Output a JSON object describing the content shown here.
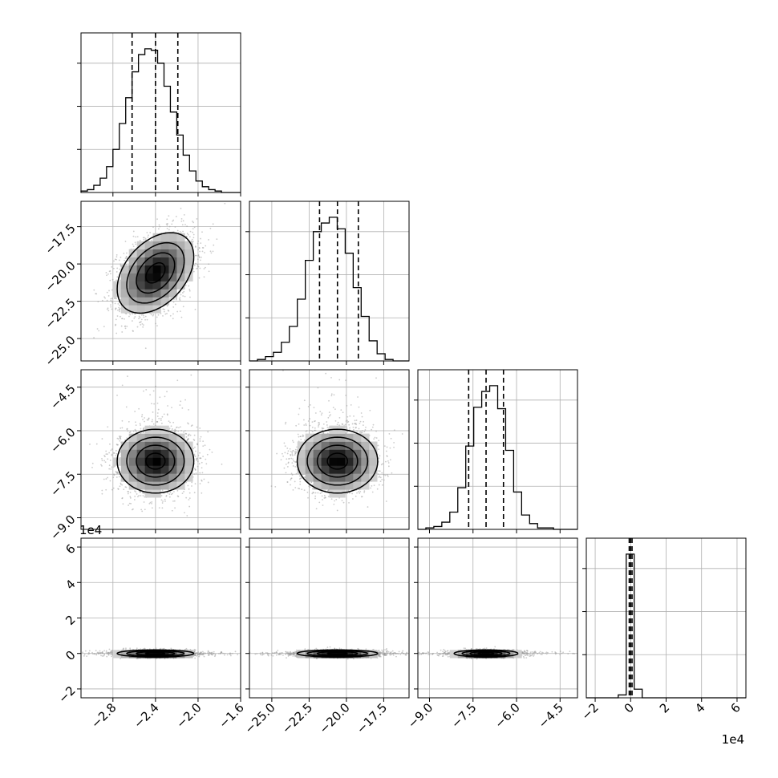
{
  "chart_data": {
    "type": "corner",
    "parameter_count": 4,
    "quantile_lines": "dashed lines at 16%, 50%, 84%",
    "grid": true,
    "colors": {
      "line": "#000000",
      "scatter": "#9a9a9a",
      "grid": "#b0b0b0",
      "frame": "#000000"
    },
    "axes": [
      {
        "range": [
          -3.1,
          -1.6
        ],
        "ticks": [
          -2.8,
          -2.4,
          -2.0,
          -1.6
        ],
        "tick_labels": [
          "−2.8",
          "−2.4",
          "−2.0",
          "−1.6"
        ],
        "offset_text": ""
      },
      {
        "range": [
          -26.5,
          -15.8
        ],
        "ticks": [
          -25.0,
          -22.5,
          -20.0,
          -17.5
        ],
        "tick_labels": [
          "−25.0",
          "−22.5",
          "−20.0",
          "−17.5"
        ],
        "offset_text": ""
      },
      {
        "range": [
          -9.4,
          -3.9
        ],
        "ticks": [
          -9.0,
          -7.5,
          -6.0,
          -4.5
        ],
        "tick_labels": [
          "−9.0",
          "−7.5",
          "−6.0",
          "−4.5"
        ],
        "offset_text": ""
      },
      {
        "range": [
          -2.5,
          6.5
        ],
        "ticks": [
          -2,
          0,
          2,
          4,
          6
        ],
        "tick_labels": [
          "−2",
          "0",
          "2",
          "4",
          "6"
        ],
        "offset_text": "1e4"
      }
    ],
    "marginals": [
      {
        "param": 0,
        "bin_edges": [
          -3.1,
          -3.04,
          -2.98,
          -2.92,
          -2.86,
          -2.8,
          -2.74,
          -2.68,
          -2.62,
          -2.56,
          -2.5,
          -2.44,
          -2.38,
          -2.32,
          -2.26,
          -2.2,
          -2.14,
          -2.08,
          -2.02,
          -1.96,
          -1.9,
          -1.84,
          -1.78,
          -1.72,
          -1.66,
          -1.6
        ],
        "counts": [
          0.01,
          0.02,
          0.05,
          0.1,
          0.18,
          0.3,
          0.48,
          0.66,
          0.84,
          0.96,
          1.0,
          0.99,
          0.9,
          0.74,
          0.56,
          0.4,
          0.26,
          0.15,
          0.08,
          0.04,
          0.02,
          0.01,
          0.0,
          0.0,
          0.0
        ],
        "quantiles": [
          -2.62,
          -2.4,
          -2.19
        ]
      },
      {
        "param": 1,
        "bin_edges": [
          -26.5,
          -25.965,
          -25.43,
          -24.895,
          -24.36,
          -23.825,
          -23.29,
          -22.755,
          -22.22,
          -21.685,
          -21.15,
          -20.615,
          -20.08,
          -19.545,
          -19.01,
          -18.475,
          -17.94,
          -17.405,
          -16.87,
          -16.335,
          -15.8
        ],
        "counts": [
          0.0,
          0.01,
          0.03,
          0.06,
          0.13,
          0.24,
          0.43,
          0.7,
          0.9,
          0.96,
          1.0,
          0.92,
          0.75,
          0.51,
          0.31,
          0.14,
          0.05,
          0.01,
          0.0,
          0.0
        ],
        "quantiles": [
          -21.8,
          -20.6,
          -19.2
        ]
      },
      {
        "param": 2,
        "bin_edges": [
          -9.4,
          -9.125,
          -8.85,
          -8.575,
          -8.3,
          -8.025,
          -7.75,
          -7.475,
          -7.2,
          -6.925,
          -6.65,
          -6.375,
          -6.1,
          -5.825,
          -5.55,
          -5.275,
          -5.0,
          -4.725,
          -4.45,
          -4.175,
          -3.9
        ],
        "counts": [
          0.0,
          0.01,
          0.02,
          0.05,
          0.12,
          0.29,
          0.58,
          0.85,
          0.96,
          1.0,
          0.84,
          0.55,
          0.26,
          0.1,
          0.04,
          0.01,
          0.01,
          0.0,
          0.0,
          0.0
        ],
        "quantiles": [
          -7.65,
          -7.05,
          -6.45
        ]
      },
      {
        "param": 3,
        "bin_edges": [
          -2.5,
          -2.05,
          -1.6,
          -1.15,
          -0.7,
          -0.25,
          0.2,
          0.65,
          1.1,
          1.55,
          2.0,
          2.45,
          2.9,
          3.35,
          3.8,
          4.25,
          4.7,
          5.15,
          5.6,
          6.05,
          6.5
        ],
        "counts": [
          0.0,
          0.0,
          0.0,
          0.0,
          0.02,
          1.0,
          0.06,
          0.0,
          0.0,
          0.0,
          0.0,
          0.0,
          0.0,
          0.0,
          0.0,
          0.0,
          0.0,
          0.0,
          0.0,
          0.0
        ],
        "quantiles": [
          -0.08,
          0.0,
          0.08
        ]
      }
    ],
    "joints": [
      {
        "x_param": 0,
        "y_param": 1,
        "mean": [
          -2.4,
          -20.6
        ],
        "std": [
          0.18,
          1.35
        ],
        "corr": 0.4
      },
      {
        "x_param": 0,
        "y_param": 2,
        "mean": [
          -2.4,
          -7.05
        ],
        "std": [
          0.18,
          0.55
        ],
        "corr": 0.0
      },
      {
        "x_param": 1,
        "y_param": 2,
        "mean": [
          -20.6,
          -7.05
        ],
        "std": [
          1.35,
          0.55
        ],
        "corr": 0.0
      },
      {
        "x_param": 0,
        "y_param": 3,
        "mean": [
          -2.4,
          0.0
        ],
        "std": [
          0.18,
          0.1
        ],
        "corr": 0.0
      },
      {
        "x_param": 1,
        "y_param": 3,
        "mean": [
          -20.6,
          0.0
        ],
        "std": [
          1.35,
          0.1
        ],
        "corr": 0.0
      },
      {
        "x_param": 2,
        "y_param": 3,
        "mean": [
          -7.05,
          0.0
        ],
        "std": [
          0.55,
          0.1
        ],
        "corr": 0.0
      }
    ]
  }
}
